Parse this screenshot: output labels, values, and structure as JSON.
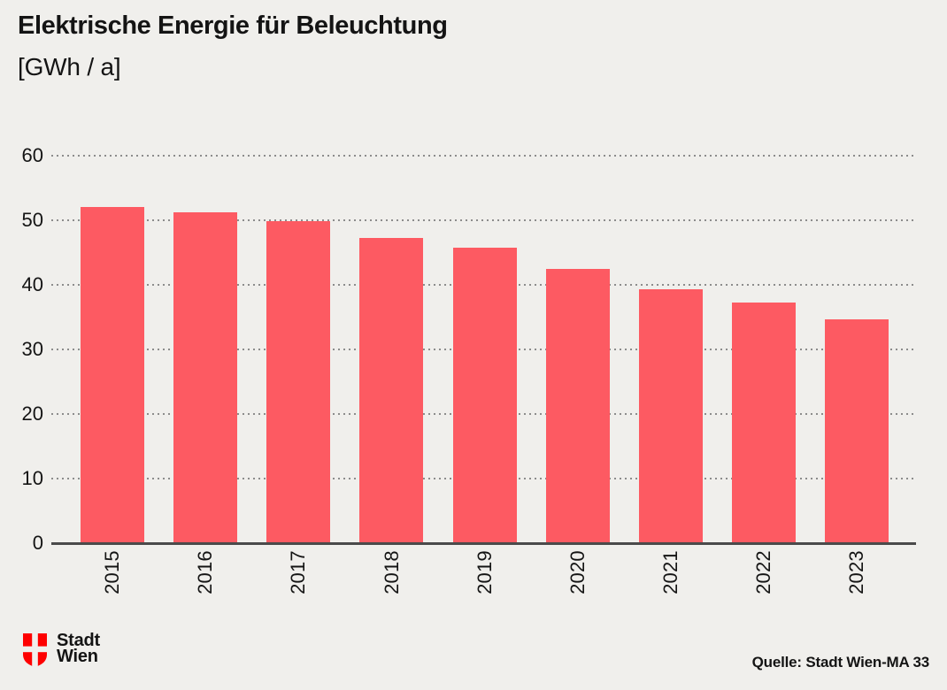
{
  "header": {
    "title": "Elektrische Energie für Beleuchtung",
    "subtitle": "[GWh / a]"
  },
  "chart_data": {
    "type": "bar",
    "title": "Elektrische Energie für Beleuchtung",
    "ylabel": "[GWh / a]",
    "xlabel": "",
    "categories": [
      "2015",
      "2016",
      "2017",
      "2018",
      "2019",
      "2020",
      "2021",
      "2022",
      "2023"
    ],
    "values": [
      52.1,
      51.3,
      49.9,
      47.2,
      45.7,
      42.4,
      39.3,
      37.3,
      34.7
    ],
    "ylim": [
      0,
      60
    ],
    "yticks": [
      0,
      10,
      20,
      30,
      40,
      50,
      60
    ],
    "grid": "horizontal-dotted",
    "legend": "none",
    "bar_color": "#fd5a62",
    "source": "Quelle: Stadt Wien-MA 33"
  },
  "footer": {
    "logo": {
      "icon": "vienna-shield-icon",
      "line1": "Stadt",
      "line2": "Wien"
    },
    "source": "Quelle: Stadt Wien-MA 33"
  },
  "colors": {
    "background": "#f0efec",
    "bar": "#fd5a62",
    "axis": "#4a4a4a",
    "grid_dot": "#8c8c8c",
    "text": "#141414",
    "logo_red": "#fe0000"
  }
}
